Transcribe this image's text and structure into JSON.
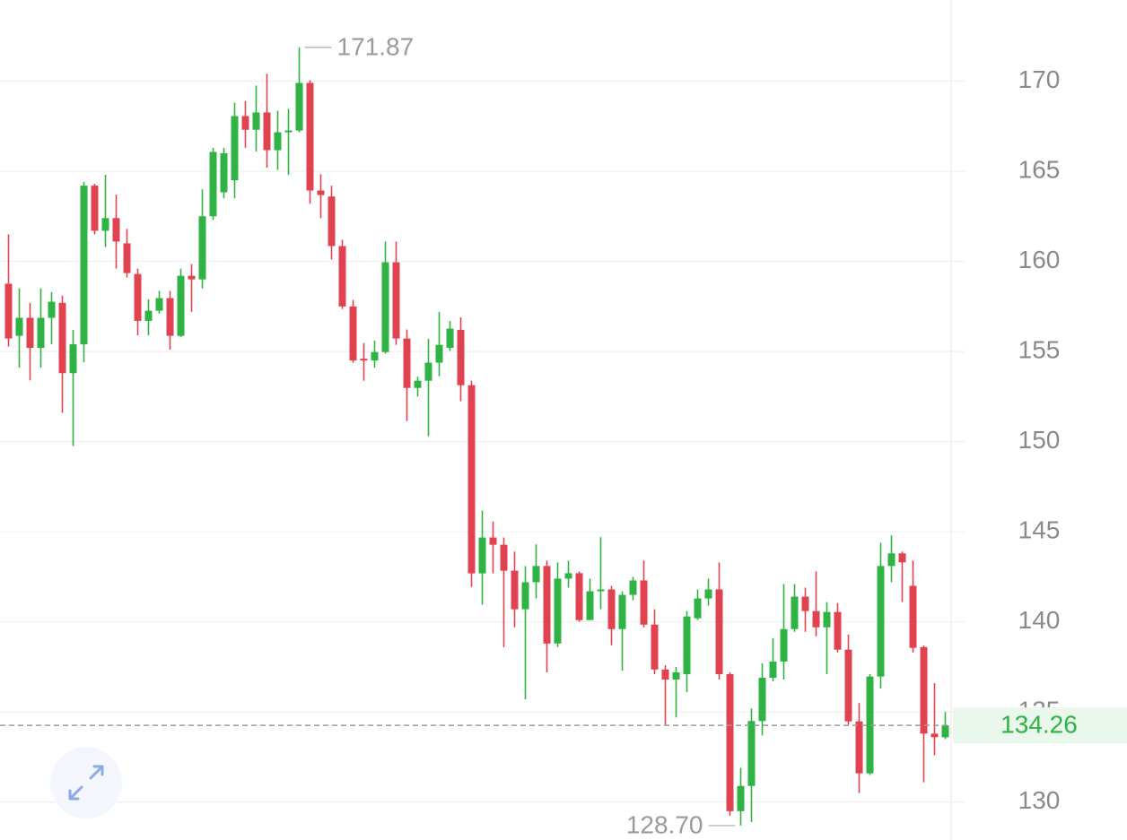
{
  "chart_data": {
    "type": "candlestick",
    "up_color": "#2fb344",
    "down_color": "#e0434f",
    "grid": true,
    "ylim": [
      127.9,
      174.5
    ],
    "yticks": [
      130,
      135,
      140,
      145,
      150,
      155,
      160,
      165,
      170
    ],
    "open": [
      158.76,
      155.87,
      156.87,
      155.2,
      156.87,
      157.7,
      153.8,
      155.4,
      164.2,
      161.7,
      162.4,
      161.0,
      159.3,
      156.7,
      157.26,
      157.96,
      155.87,
      159.2,
      159.0,
      162.5,
      163.83,
      164.5,
      168.06,
      167.3,
      168.26,
      166.17,
      167.16,
      167.26,
      169.9,
      163.93,
      163.6,
      160.85,
      157.5,
      154.6,
      154.5,
      154.97,
      159.95,
      155.72,
      152.98,
      153.38,
      154.38,
      155.2,
      156.2,
      153.13,
      142.69,
      144.68,
      144.28,
      142.84,
      140.7,
      142.2,
      143.1,
      138.8,
      142.4,
      142.7,
      140.1,
      141.7,
      141.8,
      139.6,
      141.5,
      142.3,
      139.85,
      137.36,
      136.8,
      137.1,
      140.2,
      141.3,
      141.8,
      137.1,
      129.5,
      130.9,
      134.5,
      136.9,
      137.8,
      139.6,
      141.4,
      140.6,
      139.7,
      140.55,
      138.46,
      134.48,
      131.6,
      136.97,
      143.1,
      143.8,
      142.0,
      138.6,
      133.8,
      133.6
    ],
    "high": [
      161.5,
      158.5,
      157.7,
      158.5,
      158.3,
      158.1,
      156.2,
      164.4,
      164.3,
      164.8,
      163.7,
      161.8,
      159.6,
      157.9,
      158.36,
      158.36,
      159.6,
      159.85,
      164.0,
      166.3,
      166.3,
      168.8,
      168.9,
      169.75,
      170.4,
      168.36,
      168.46,
      171.87,
      170.05,
      164.83,
      164.2,
      161.2,
      157.86,
      155.47,
      155.6,
      161.1,
      161.1,
      156.22,
      153.6,
      155.7,
      157.2,
      156.7,
      156.9,
      153.38,
      146.17,
      145.57,
      144.68,
      143.9,
      143.1,
      144.3,
      143.4,
      143.3,
      143.4,
      142.8,
      142.4,
      144.7,
      142.0,
      141.7,
      142.5,
      143.4,
      140.7,
      137.6,
      137.5,
      140.6,
      141.8,
      142.4,
      143.3,
      137.2,
      131.9,
      135.2,
      137.7,
      139.1,
      142.1,
      142.1,
      141.9,
      142.8,
      141.1,
      141.05,
      139.3,
      135.5,
      137.1,
      144.4,
      144.8,
      143.9,
      143.4,
      138.7,
      136.6,
      135.0
    ],
    "low": [
      155.27,
      154.1,
      153.4,
      154.1,
      155.4,
      151.6,
      149.75,
      154.4,
      161.5,
      160.8,
      159.6,
      159.1,
      155.9,
      155.9,
      157.1,
      155.1,
      155.8,
      157.2,
      158.5,
      162.3,
      163.5,
      163.5,
      166.3,
      166.1,
      165.2,
      165.07,
      164.8,
      167.16,
      163.2,
      162.4,
      160.1,
      157.36,
      154.38,
      153.38,
      154.1,
      154.88,
      155.37,
      151.14,
      152.5,
      150.3,
      153.63,
      155.03,
      152.24,
      141.94,
      140.95,
      142.69,
      138.6,
      139.7,
      135.7,
      141.3,
      137.2,
      138.6,
      141.9,
      140.0,
      140.2,
      140.7,
      138.7,
      137.3,
      141.2,
      139.7,
      137.1,
      134.3,
      134.7,
      136.1,
      140.1,
      140.9,
      136.8,
      129.25,
      128.7,
      128.9,
      133.7,
      136.7,
      136.8,
      139.45,
      139.45,
      139.2,
      137.1,
      138.3,
      134.3,
      130.5,
      131.5,
      136.3,
      142.2,
      141.1,
      138.3,
      131.1,
      132.6,
      133.5
    ],
    "close": [
      155.72,
      156.87,
      155.2,
      156.87,
      157.76,
      153.8,
      155.4,
      164.2,
      161.7,
      162.4,
      161.1,
      159.35,
      156.7,
      157.26,
      157.96,
      155.87,
      159.2,
      159.0,
      162.5,
      166.07,
      166.0,
      168.06,
      167.3,
      168.26,
      166.17,
      167.16,
      167.26,
      169.9,
      163.93,
      163.68,
      160.85,
      157.5,
      154.5,
      154.5,
      154.97,
      159.95,
      155.72,
      152.98,
      153.38,
      154.38,
      155.37,
      156.27,
      153.13,
      142.69,
      144.68,
      144.28,
      142.84,
      140.7,
      142.2,
      143.1,
      138.8,
      142.4,
      142.7,
      140.1,
      141.7,
      141.8,
      139.6,
      141.5,
      142.3,
      139.85,
      137.36,
      136.8,
      137.2,
      140.3,
      141.3,
      141.8,
      137.1,
      129.5,
      130.9,
      134.5,
      136.9,
      137.8,
      139.6,
      141.4,
      140.6,
      139.7,
      140.55,
      138.46,
      134.48,
      131.6,
      136.97,
      143.1,
      143.8,
      143.3,
      138.56,
      133.8,
      133.6,
      134.26
    ],
    "max_label": 171.87,
    "min_label": {
      "value": 128.7,
      "label": "128.70"
    },
    "last_price": 134.26
  }
}
